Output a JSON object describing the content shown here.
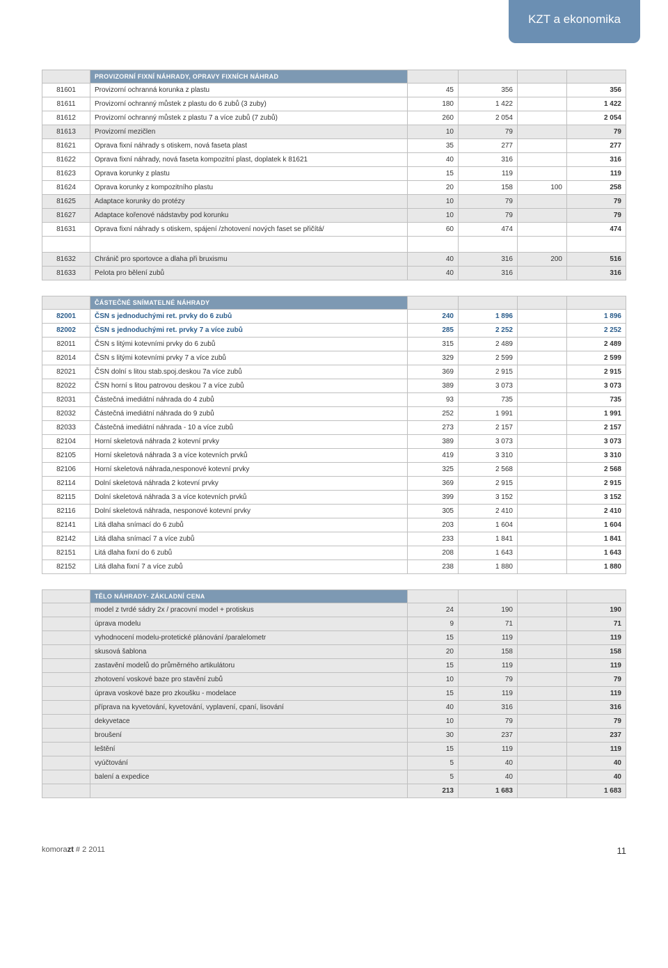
{
  "sectionTab": "KZT a ekonomika",
  "footer": {
    "left_prefix": "komora",
    "left_bold": "zt",
    "left_suffix": " # 2  2011",
    "page": "11"
  },
  "table1": {
    "header": "PROVIZORNÍ FIXNÍ NÁHRADY, OPRAVY FIXNÍCH NÁHRAD",
    "rows": [
      {
        "code": "81601",
        "desc": "Provizorní ochranná korunka z plastu",
        "c1": "45",
        "c2": "356",
        "c3": "",
        "tot": "356",
        "shade": false
      },
      {
        "code": "81611",
        "desc": "Provizorní ochranný můstek z plastu do 6 zubů (3 zuby)",
        "c1": "180",
        "c2": "1 422",
        "c3": "",
        "tot": "1 422",
        "shade": false
      },
      {
        "code": "81612",
        "desc": "Provizorní ochranný můstek z plastu 7 a více zubů (7 zubů)",
        "c1": "260",
        "c2": "2 054",
        "c3": "",
        "tot": "2 054",
        "shade": false
      },
      {
        "code": "81613",
        "desc": "Provizorní mezičlen",
        "c1": "10",
        "c2": "79",
        "c3": "",
        "tot": "79",
        "shade": true
      },
      {
        "code": "81621",
        "desc": "Oprava fixní náhrady s otiskem, nová faseta plast",
        "c1": "35",
        "c2": "277",
        "c3": "",
        "tot": "277",
        "shade": false
      },
      {
        "code": "81622",
        "desc": "Oprava fixní náhrady, nová faseta kompozitní plast, doplatek k 81621",
        "c1": "40",
        "c2": "316",
        "c3": "",
        "tot": "316",
        "shade": false
      },
      {
        "code": "81623",
        "desc": "Oprava korunky z plastu",
        "c1": "15",
        "c2": "119",
        "c3": "",
        "tot": "119",
        "shade": false
      },
      {
        "code": "81624",
        "desc": "Oprava korunky z kompozitního plastu",
        "c1": "20",
        "c2": "158",
        "c3": "100",
        "tot": "258",
        "shade": false
      },
      {
        "code": "81625",
        "desc": "Adaptace korunky do protézy",
        "c1": "10",
        "c2": "79",
        "c3": "",
        "tot": "79",
        "shade": true
      },
      {
        "code": "81627",
        "desc": "Adaptace kořenové nádstavby pod korunku",
        "c1": "10",
        "c2": "79",
        "c3": "",
        "tot": "79",
        "shade": true
      },
      {
        "code": "81631",
        "desc": "Oprava fixní náhrady s otiskem, spájení /zhotovení nových faset se přičítá/",
        "c1": "60",
        "c2": "474",
        "c3": "",
        "tot": "474",
        "shade": false
      }
    ],
    "rows2": [
      {
        "code": "81632",
        "desc": "Chránič pro sportovce a dlaha při bruxismu",
        "c1": "40",
        "c2": "316",
        "c3": "200",
        "tot": "516",
        "shade": true
      },
      {
        "code": "81633",
        "desc": "Pelota pro bělení zubů",
        "c1": "40",
        "c2": "316",
        "c3": "",
        "tot": "316",
        "shade": true
      }
    ]
  },
  "table2": {
    "header": "ČÁSTEČNÉ SNÍMATELNÉ NÁHRADY",
    "rows": [
      {
        "code": "82001",
        "desc": "ČSN s jednoduchými ret. prvky do 6 zubů",
        "c1": "240",
        "c2": "1 896",
        "c3": "",
        "tot": "1 896",
        "shade": false,
        "blue": true
      },
      {
        "code": "82002",
        "desc": "ČSN s jednoduchými ret. prvky 7 a více zubů",
        "c1": "285",
        "c2": "2 252",
        "c3": "",
        "tot": "2 252",
        "shade": false,
        "blue": true
      },
      {
        "code": "82011",
        "desc": "ČSN s litými kotevními prvky do 6 zubů",
        "c1": "315",
        "c2": "2 489",
        "c3": "",
        "tot": "2 489",
        "shade": false
      },
      {
        "code": "82014",
        "desc": "ČSN s litými kotevními prvky 7 a více zubů",
        "c1": "329",
        "c2": "2 599",
        "c3": "",
        "tot": "2 599",
        "shade": false
      },
      {
        "code": "82021",
        "desc": "ČSN dolní s litou stab.spoj.deskou 7a více zubů",
        "c1": "369",
        "c2": "2 915",
        "c3": "",
        "tot": "2 915",
        "shade": false
      },
      {
        "code": "82022",
        "desc": "ČSN horní s litou patrovou deskou 7 a více zubů",
        "c1": "389",
        "c2": "3 073",
        "c3": "",
        "tot": "3 073",
        "shade": false
      },
      {
        "code": "82031",
        "desc": "Částečná imediátní náhrada do 4 zubů",
        "c1": "93",
        "c2": "735",
        "c3": "",
        "tot": "735",
        "shade": false
      },
      {
        "code": "82032",
        "desc": "Částečná imediátní náhrada do 9 zubů",
        "c1": "252",
        "c2": "1 991",
        "c3": "",
        "tot": "1 991",
        "shade": false
      },
      {
        "code": "82033",
        "desc": "Částečná imediátní náhrada - 10 a více zubů",
        "c1": "273",
        "c2": "2 157",
        "c3": "",
        "tot": "2 157",
        "shade": false
      },
      {
        "code": "82104",
        "desc": "Horní skeletová náhrada 2 kotevní prvky",
        "c1": "389",
        "c2": "3 073",
        "c3": "",
        "tot": "3 073",
        "shade": false
      },
      {
        "code": "82105",
        "desc": "Horní skeletová náhrada 3 a více kotevních prvků",
        "c1": "419",
        "c2": "3 310",
        "c3": "",
        "tot": "3 310",
        "shade": false
      },
      {
        "code": "82106",
        "desc": "Horní skeletová náhrada,nesponové kotevní prvky",
        "c1": "325",
        "c2": "2 568",
        "c3": "",
        "tot": "2 568",
        "shade": false
      },
      {
        "code": "82114",
        "desc": "Dolní skeletová náhrada 2 kotevní prvky",
        "c1": "369",
        "c2": "2 915",
        "c3": "",
        "tot": "2 915",
        "shade": false
      },
      {
        "code": "82115",
        "desc": "Dolní skeletová náhrada 3 a více kotevních prvků",
        "c1": "399",
        "c2": "3 152",
        "c3": "",
        "tot": "3 152",
        "shade": false
      },
      {
        "code": "82116",
        "desc": "Dolní skeletová náhrada, nesponové kotevní prvky",
        "c1": "305",
        "c2": "2 410",
        "c3": "",
        "tot": "2 410",
        "shade": false
      },
      {
        "code": "82141",
        "desc": "Litá dlaha snímací do 6 zubů",
        "c1": "203",
        "c2": "1 604",
        "c3": "",
        "tot": "1 604",
        "shade": false
      },
      {
        "code": "82142",
        "desc": "Litá dlaha snímací 7 a více zubů",
        "c1": "233",
        "c2": "1 841",
        "c3": "",
        "tot": "1 841",
        "shade": false
      },
      {
        "code": "82151",
        "desc": "Litá dlaha fixní do 6 zubů",
        "c1": "208",
        "c2": "1 643",
        "c3": "",
        "tot": "1 643",
        "shade": false
      },
      {
        "code": "82152",
        "desc": "Litá dlaha fixní 7 a více zubů",
        "c1": "238",
        "c2": "1 880",
        "c3": "",
        "tot": "1 880",
        "shade": false
      }
    ]
  },
  "table3": {
    "header": "TĚLO NÁHRADY- ZÁKLADNÍ CENA",
    "rows": [
      {
        "desc": "model z tvrdé sádry 2x / pracovní model + protiskus",
        "c1": "24",
        "c2": "190",
        "tot": "190"
      },
      {
        "desc": "úprava modelu",
        "c1": "9",
        "c2": "71",
        "tot": "71"
      },
      {
        "desc": "vyhodnocení modelu-protetické plánování /paralelometr",
        "c1": "15",
        "c2": "119",
        "tot": "119"
      },
      {
        "desc": "skusová šablona",
        "c1": "20",
        "c2": "158",
        "tot": "158"
      },
      {
        "desc": "zastavění modelů do průměrného artikulátoru",
        "c1": "15",
        "c2": "119",
        "tot": "119"
      },
      {
        "desc": "zhotovení voskové baze pro stavění zubů",
        "c1": "10",
        "c2": "79",
        "tot": "79"
      },
      {
        "desc": "úprava voskové baze pro zkoušku - modelace",
        "c1": "15",
        "c2": "119",
        "tot": "119"
      },
      {
        "desc": "příprava na kyvetování, kyvetování, vyplavení, cpaní, lisování",
        "c1": "40",
        "c2": "316",
        "tot": "316"
      },
      {
        "desc": "dekyvetace",
        "c1": "10",
        "c2": "79",
        "tot": "79"
      },
      {
        "desc": "broušení",
        "c1": "30",
        "c2": "237",
        "tot": "237"
      },
      {
        "desc": "leštění",
        "c1": "15",
        "c2": "119",
        "tot": "119"
      },
      {
        "desc": "vyúčtování",
        "c1": "5",
        "c2": "40",
        "tot": "40"
      },
      {
        "desc": "balení a expedice",
        "c1": "5",
        "c2": "40",
        "tot": "40"
      }
    ],
    "total": {
      "c1": "213",
      "c2": "1 683",
      "tot": "1 683"
    }
  }
}
